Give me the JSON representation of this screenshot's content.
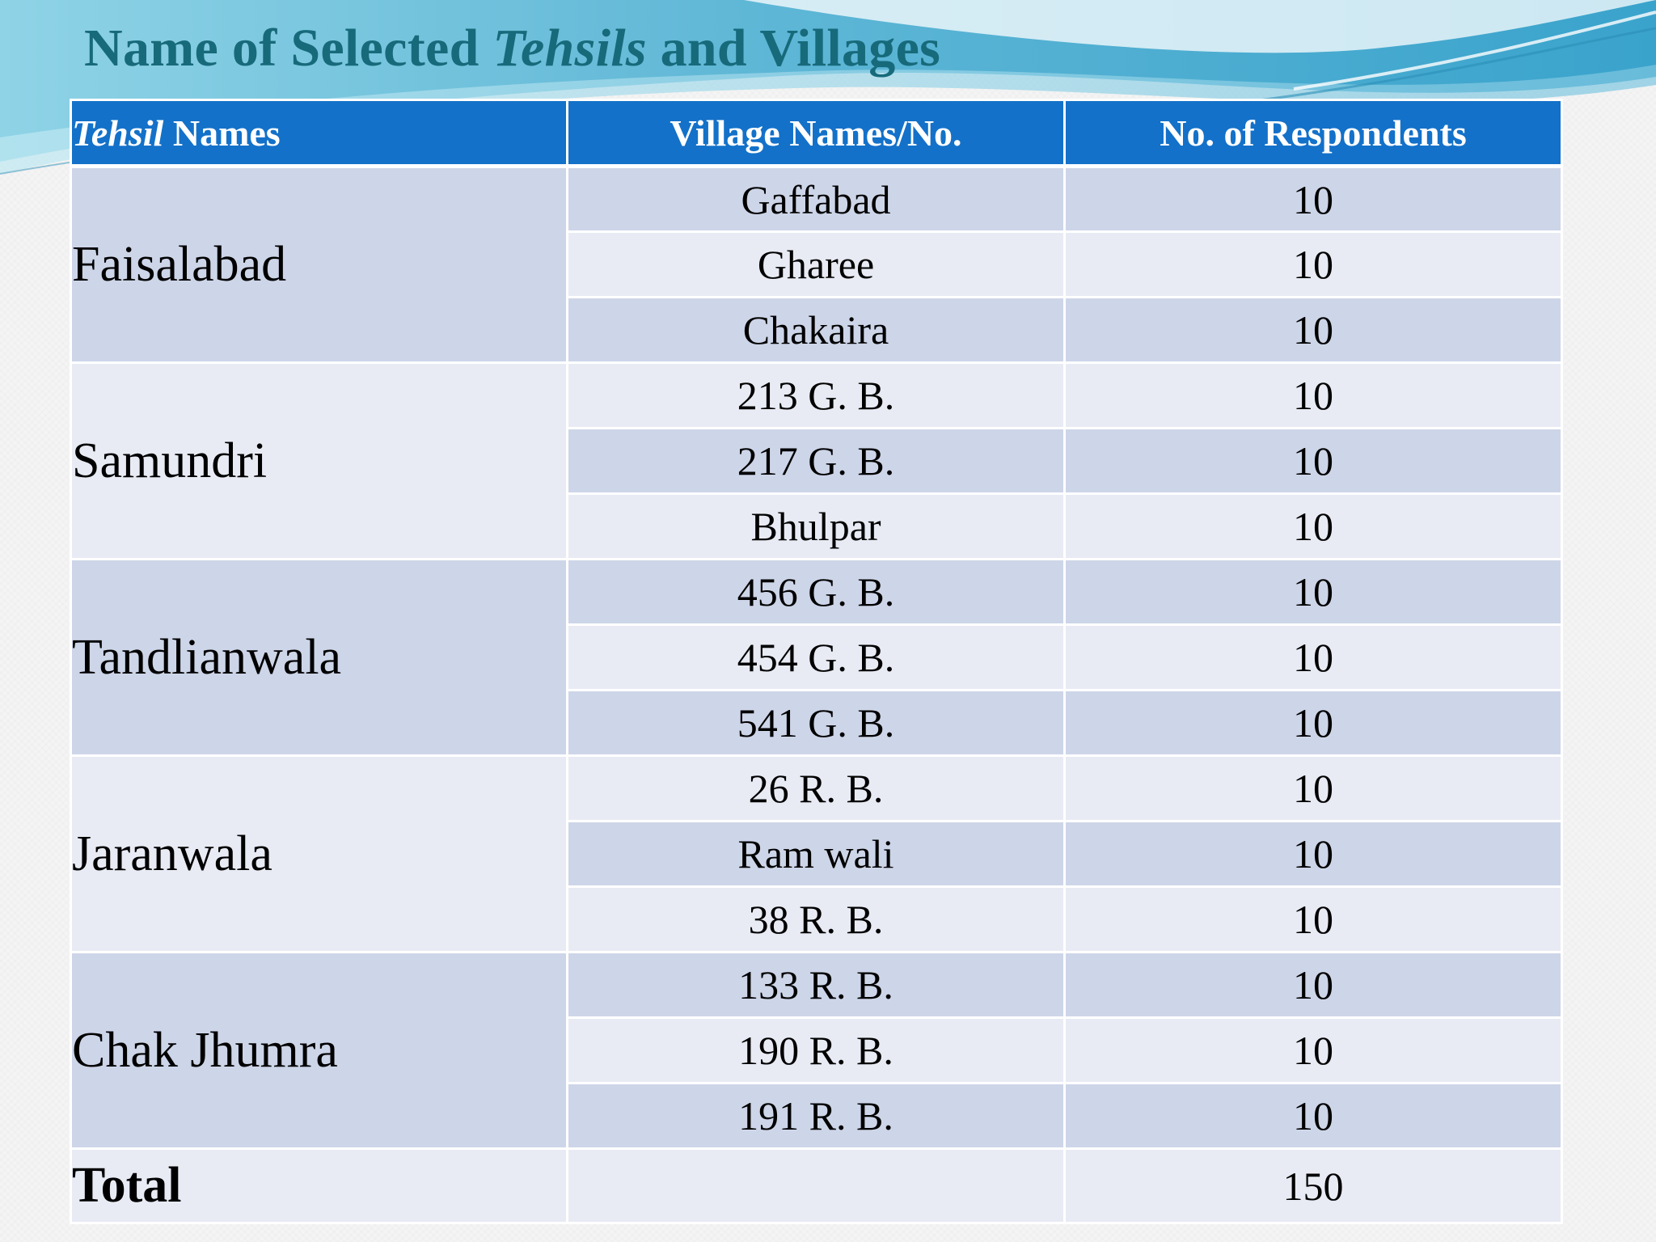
{
  "slide": {
    "title_part1": "Name of Selected ",
    "title_italic": "Tehsils",
    "title_part2": " and Villages"
  },
  "table": {
    "headers": {
      "tehsil_italic": "Tehsil",
      "tehsil_rest": " Names",
      "village": "Village Names/No.",
      "respondents": "No. of Respondents"
    },
    "groups": [
      {
        "tehsil": "Faisalabad",
        "villages": [
          {
            "name": "Gaffabad",
            "respondents": "10"
          },
          {
            "name": "Gharee",
            "respondents": "10"
          },
          {
            "name": "Chakaira",
            "respondents": "10"
          }
        ]
      },
      {
        "tehsil": "Samundri",
        "villages": [
          {
            "name": "213 G. B.",
            "respondents": "10"
          },
          {
            "name": "217 G. B.",
            "respondents": "10"
          },
          {
            "name": "Bhulpar",
            "respondents": "10"
          }
        ]
      },
      {
        "tehsil": "Tandlianwala",
        "villages": [
          {
            "name": "456 G. B.",
            "respondents": "10"
          },
          {
            "name": "454 G. B.",
            "respondents": "10"
          },
          {
            "name": "541 G. B.",
            "respondents": "10"
          }
        ]
      },
      {
        "tehsil": "Jaranwala",
        "villages": [
          {
            "name": "26 R. B.",
            "respondents": "10"
          },
          {
            "name": "Ram wali",
            "respondents": "10"
          },
          {
            "name": "38 R. B.",
            "respondents": "10"
          }
        ]
      },
      {
        "tehsil": "Chak Jhumra",
        "villages": [
          {
            "name": "133 R. B.",
            "respondents": "10"
          },
          {
            "name": "190 R. B.",
            "respondents": "10"
          },
          {
            "name": "191 R. B.",
            "respondents": "10"
          }
        ]
      }
    ],
    "total": {
      "label": "Total",
      "value": "150"
    }
  },
  "colors": {
    "header_bg": "#1371c9",
    "band_dark": "#cdd5e8",
    "band_light": "#e8ebf4",
    "title_teal": "#176a7a"
  }
}
